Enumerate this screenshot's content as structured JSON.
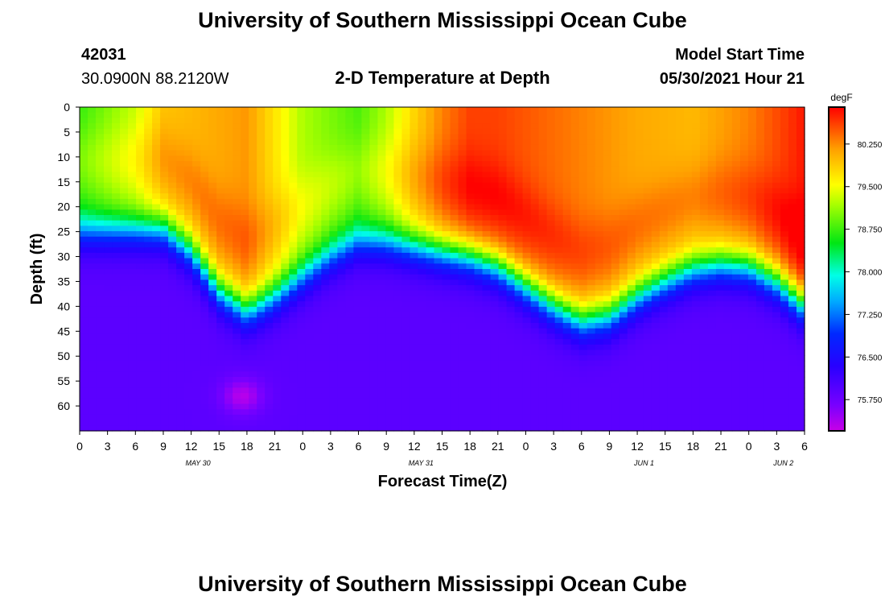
{
  "header": {
    "title": "University of Southern Mississippi Ocean Cube",
    "station_id": "42031",
    "location": "30.0900N  88.2120W",
    "subtitle": "2-D Temperature at Depth",
    "model_start_label": "Model Start Time",
    "model_start_value": "05/30/2021 Hour 21"
  },
  "footer": {
    "title": "University of Southern Mississippi Ocean Cube"
  },
  "chart_data": {
    "type": "heatmap",
    "title": "2-D Temperature at Depth",
    "xlabel": "Forecast Time(Z)",
    "ylabel": "Depth (ft)",
    "x_range_hours": [
      0,
      78
    ],
    "y_range_ft": [
      0,
      65
    ],
    "x_tick_labels": [
      "0",
      "3",
      "6",
      "9",
      "12",
      "15",
      "18",
      "21",
      "0",
      "3",
      "6",
      "9",
      "12",
      "15",
      "18",
      "21",
      "0",
      "3",
      "6",
      "9",
      "12",
      "15",
      "18",
      "21",
      "0",
      "3",
      "6"
    ],
    "date_labels": [
      {
        "hour": 11,
        "label": "MAY 30"
      },
      {
        "hour": 35,
        "label": "MAY 31"
      },
      {
        "hour": 59,
        "label": "JUN 1"
      },
      {
        "hour": 74,
        "label": "JUN 2"
      }
    ],
    "y_ticks": [
      0,
      5,
      10,
      15,
      20,
      25,
      30,
      35,
      40,
      45,
      50,
      55,
      60
    ],
    "colorbar": {
      "unit": "degF",
      "range": [
        75.2,
        80.9
      ],
      "ticks": [
        "80.250",
        "79.500",
        "78.750",
        "78.000",
        "77.250",
        "76.500",
        "75.750"
      ]
    },
    "thermocline_depth_ft": [
      {
        "hour": 0,
        "depth": 25
      },
      {
        "hour": 9,
        "depth": 24.5
      },
      {
        "hour": 12,
        "depth": 29
      },
      {
        "hour": 15,
        "depth": 37
      },
      {
        "hour": 18,
        "depth": 41
      },
      {
        "hour": 21,
        "depth": 38
      },
      {
        "hour": 24,
        "depth": 34
      },
      {
        "hour": 27,
        "depth": 30
      },
      {
        "hour": 30,
        "depth": 27
      },
      {
        "hour": 33,
        "depth": 27
      },
      {
        "hour": 36,
        "depth": 28
      },
      {
        "hour": 39,
        "depth": 29
      },
      {
        "hour": 42,
        "depth": 30
      },
      {
        "hour": 45,
        "depth": 32
      },
      {
        "hour": 48,
        "depth": 36
      },
      {
        "hour": 51,
        "depth": 40
      },
      {
        "hour": 54,
        "depth": 43
      },
      {
        "hour": 57,
        "depth": 42
      },
      {
        "hour": 60,
        "depth": 38
      },
      {
        "hour": 63,
        "depth": 35
      },
      {
        "hour": 66,
        "depth": 32.5
      },
      {
        "hour": 69,
        "depth": 31.5
      },
      {
        "hour": 72,
        "depth": 32
      },
      {
        "hour": 75,
        "depth": 35
      },
      {
        "hour": 78,
        "depth": 40
      }
    ],
    "surface_temp_degF": [
      {
        "hour": 0,
        "temp": 78.7
      },
      {
        "hour": 6,
        "temp": 79.3
      },
      {
        "hour": 9,
        "temp": 79.9
      },
      {
        "hour": 15,
        "temp": 80.1
      },
      {
        "hour": 18,
        "temp": 80.2
      },
      {
        "hour": 21,
        "temp": 79.7
      },
      {
        "hour": 24,
        "temp": 79.2
      },
      {
        "hour": 27,
        "temp": 79.0
      },
      {
        "hour": 30,
        "temp": 78.8
      },
      {
        "hour": 33,
        "temp": 79.2
      },
      {
        "hour": 36,
        "temp": 79.8
      },
      {
        "hour": 39,
        "temp": 80.3
      },
      {
        "hour": 42,
        "temp": 80.6
      },
      {
        "hour": 45,
        "temp": 80.6
      },
      {
        "hour": 48,
        "temp": 80.5
      },
      {
        "hour": 54,
        "temp": 80.3
      },
      {
        "hour": 60,
        "temp": 80.1
      },
      {
        "hour": 66,
        "temp": 80.0
      },
      {
        "hour": 72,
        "temp": 80.3
      },
      {
        "hour": 78,
        "temp": 80.8
      }
    ]
  }
}
